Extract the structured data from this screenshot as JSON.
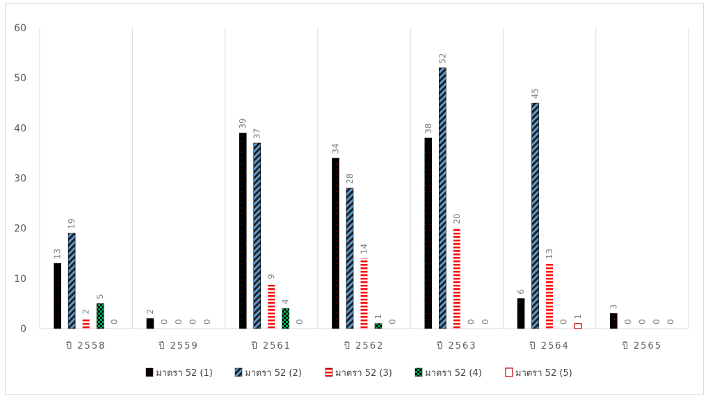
{
  "chart_data": {
    "type": "bar",
    "title": "",
    "xlabel": "",
    "ylabel": "",
    "ylim": [
      0,
      60
    ],
    "yticks": [
      0,
      10,
      20,
      30,
      40,
      50,
      60
    ],
    "categories": [
      "ปี 2558",
      "ปี 2559",
      "ปี 2561",
      "ปี 2562",
      "ปี 2563",
      "ปี 2564",
      "ปี 2565"
    ],
    "series": [
      {
        "name": "มาตรา 52 (1)",
        "values": [
          13,
          2,
          39,
          34,
          38,
          6,
          3
        ],
        "color": "#000000",
        "pattern": "dots"
      },
      {
        "name": "มาตรา 52 (2)",
        "values": [
          19,
          0,
          37,
          28,
          52,
          45,
          0
        ],
        "color": "#5b9bd5",
        "pattern": "diagonal"
      },
      {
        "name": "มาตรา 52 (3)",
        "values": [
          2,
          0,
          9,
          14,
          20,
          13,
          0
        ],
        "color": "#ff0000",
        "pattern": "hstripes"
      },
      {
        "name": "มาตรา 52 (4)",
        "values": [
          5,
          0,
          4,
          1,
          0,
          0,
          0
        ],
        "color": "#00b050",
        "pattern": "checker"
      },
      {
        "name": "มาตรา 52 (5)",
        "values": [
          0,
          0,
          0,
          0,
          0,
          1,
          0
        ],
        "color": "#c00000",
        "pattern": "outline"
      }
    ],
    "grid": {
      "horizontal": false,
      "vertical_category_separators": true
    },
    "legend": "bottom",
    "data_labels": true
  }
}
